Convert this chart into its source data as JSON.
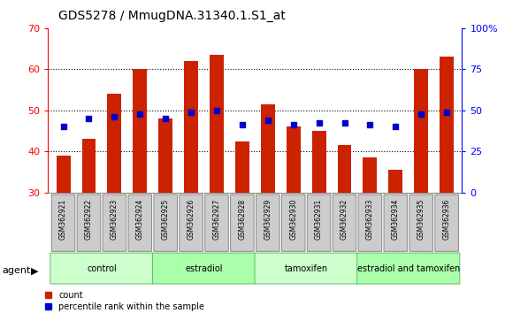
{
  "title": "GDS5278 / MmugDNA.31340.1.S1_at",
  "samples": [
    "GSM362921",
    "GSM362922",
    "GSM362923",
    "GSM362924",
    "GSM362925",
    "GSM362926",
    "GSM362927",
    "GSM362928",
    "GSM362929",
    "GSM362930",
    "GSM362931",
    "GSM362932",
    "GSM362933",
    "GSM362934",
    "GSM362935",
    "GSM362936"
  ],
  "counts": [
    39.0,
    43.0,
    54.0,
    60.0,
    48.0,
    62.0,
    63.5,
    42.5,
    51.5,
    46.0,
    45.0,
    41.5,
    38.5,
    35.5,
    60.0,
    63.0
  ],
  "percentiles_left_scale": [
    46.0,
    48.0,
    48.5,
    49.0,
    48.0,
    49.5,
    50.0,
    46.5,
    47.5,
    46.5,
    47.0,
    47.0,
    46.5,
    46.0,
    49.0,
    49.5
  ],
  "groups": [
    {
      "name": "control",
      "start": 0,
      "end": 4,
      "color": "#ccffcc"
    },
    {
      "name": "estradiol",
      "start": 4,
      "end": 8,
      "color": "#aaffaa"
    },
    {
      "name": "tamoxifen",
      "start": 8,
      "end": 12,
      "color": "#ccffcc"
    },
    {
      "name": "estradiol and tamoxifen",
      "start": 12,
      "end": 16,
      "color": "#aaffaa"
    }
  ],
  "bar_color": "#cc2200",
  "dot_color": "#0000cc",
  "ylim_left": [
    30,
    70
  ],
  "ylim_right": [
    0,
    100
  ],
  "yticks_left": [
    30,
    40,
    50,
    60,
    70
  ],
  "yticks_right": [
    0,
    25,
    50,
    75,
    100
  ],
  "grid_lines": [
    40,
    50,
    60
  ],
  "label_fontsize": 8,
  "tick_fontsize": 8,
  "title_fontsize": 10,
  "bar_width": 0.55,
  "sample_box_color": "#cccccc",
  "sample_box_edge": "#888888",
  "group_edge_color": "#66bb66",
  "legend_labels": [
    "count",
    "percentile rank within the sample"
  ],
  "agent_label": "agent"
}
